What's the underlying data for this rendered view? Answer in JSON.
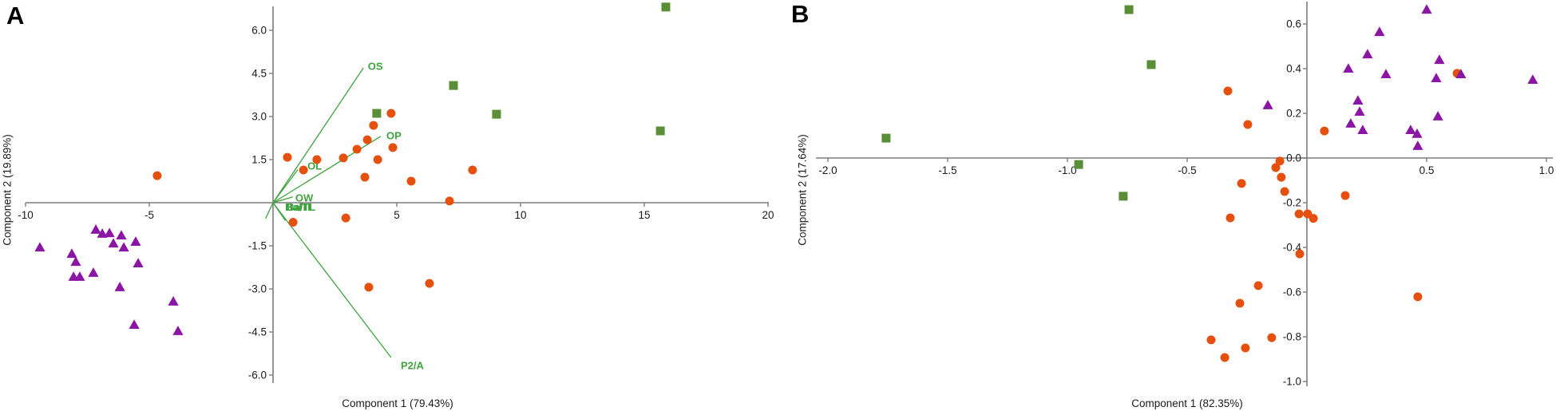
{
  "figure": {
    "background": "#ffffff",
    "description_colors": {
      "circle_series": "#e5500f",
      "triangle_series": "#8b16a3",
      "square_series": "#5a8f37",
      "vector_green": "#3fa33f",
      "axis_gray": "#7d7d7d",
      "text_dark": "#1a1a1a"
    }
  },
  "chart_data": [
    {
      "type": "scatter",
      "panel_label": "A",
      "xlabel": "Component 1 (79.43%)",
      "ylabel": "Component 2 (19.89%)",
      "xlim": [
        -10.7,
        20.6
      ],
      "ylim": [
        -6.5,
        6.9
      ],
      "grid": false,
      "legend": null,
      "x_ticks": {
        "values": [
          -10,
          -5,
          5,
          10,
          15,
          20
        ],
        "labels": [
          "-10",
          "-5",
          "5",
          "10",
          "15",
          "20"
        ]
      },
      "y_ticks": {
        "values": [
          6,
          4.5,
          3,
          1.5,
          -1.5,
          -3,
          -4.5,
          -6
        ],
        "labels": [
          "6.0",
          "4.5",
          "3.0",
          "1.5",
          "-1.5",
          "-3.0",
          "-4.5",
          "-6.0"
        ]
      },
      "series": [
        {
          "name": "group-circles",
          "marker": "circle",
          "color": "#e5500f",
          "points": [
            [
              -4.68,
              0.94
            ],
            [
              0.58,
              1.58
            ],
            [
              1.23,
              1.14
            ],
            [
              1.77,
              1.5
            ],
            [
              2.84,
              1.56
            ],
            [
              3.39,
              1.86
            ],
            [
              3.81,
              2.19
            ],
            [
              4.06,
              2.69
            ],
            [
              4.77,
              3.11
            ],
            [
              4.23,
              1.5
            ],
            [
              4.84,
              1.92
            ],
            [
              3.71,
              0.89
            ],
            [
              5.58,
              0.75
            ],
            [
              8.06,
              1.14
            ],
            [
              7.13,
              0.06
            ],
            [
              0.81,
              -0.68
            ],
            [
              2.94,
              -0.53
            ],
            [
              3.87,
              -2.94
            ],
            [
              6.32,
              -2.81
            ]
          ]
        },
        {
          "name": "group-triangles",
          "marker": "triangle",
          "color": "#8b16a3",
          "points": [
            [
              -9.42,
              -1.56
            ],
            [
              -8.13,
              -1.78
            ],
            [
              -7.97,
              -2.06
            ],
            [
              -8.06,
              -2.58
            ],
            [
              -7.81,
              -2.58
            ],
            [
              -7.26,
              -2.44
            ],
            [
              -7.16,
              -0.94
            ],
            [
              -6.9,
              -1.08
            ],
            [
              -6.61,
              -1.06
            ],
            [
              -6.45,
              -1.42
            ],
            [
              -6.13,
              -1.14
            ],
            [
              -6.03,
              -1.56
            ],
            [
              -5.55,
              -1.36
            ],
            [
              -5.45,
              -2.11
            ],
            [
              -6.19,
              -2.94
            ],
            [
              -4.03,
              -3.44
            ],
            [
              -5.61,
              -4.25
            ],
            [
              -3.84,
              -4.47
            ]
          ]
        },
        {
          "name": "group-squares",
          "marker": "square",
          "color": "#5a8f37",
          "points": [
            [
              4.19,
              3.11
            ],
            [
              7.29,
              4.08
            ],
            [
              9.03,
              3.08
            ],
            [
              15.87,
              6.81
            ],
            [
              15.65,
              2.5
            ]
          ]
        }
      ],
      "vectors": {
        "color": "#3fa33f",
        "origin": [
          0,
          0
        ],
        "items": [
          {
            "label": "OS",
            "tip": [
              3.65,
              4.69
            ],
            "label_pos": [
              3.83,
              4.75
            ]
          },
          {
            "label": "OP",
            "tip": [
              4.35,
              2.31
            ],
            "label_pos": [
              4.58,
              2.33
            ]
          },
          {
            "label": "OL",
            "tip": [
              1.0,
              1.15
            ],
            "label_pos": [
              1.39,
              1.28
            ]
          },
          {
            "label": "OW",
            "tip": [
              0.8,
              0.2
            ],
            "label_pos": [
              0.9,
              0.17
            ]
          },
          {
            "label": "Ba/TL",
            "tip": [
              0.5,
              -0.62
            ],
            "label_pos": [
              0.52,
              -0.15
            ],
            "dense": true
          },
          {
            "label": "",
            "tip": [
              -0.3,
              -0.55
            ],
            "label_pos": [
              -0.3,
              -0.55
            ]
          },
          {
            "label": "P2/A",
            "tip": [
              4.77,
              -5.39
            ],
            "label_pos": [
              5.16,
              -5.67
            ]
          }
        ]
      }
    },
    {
      "type": "scatter",
      "panel_label": "B",
      "xlabel": "Component 1 (82.35%)",
      "ylabel": "Component 2 (17.64%)",
      "xlim": [
        -2.05,
        1.03
      ],
      "ylim": [
        -1.02,
        0.7
      ],
      "grid": false,
      "legend": null,
      "x_ticks": {
        "values": [
          -2,
          -1.5,
          -1,
          -0.5,
          0.5,
          1
        ],
        "labels": [
          "-2.0",
          "-1.5",
          "-1.0",
          "-0.5",
          "0.5",
          "1.0"
        ]
      },
      "y_ticks": {
        "values": [
          0.6,
          0.4,
          0.2,
          0,
          -0.2,
          -0.4,
          -0.6,
          -0.8,
          -1
        ],
        "labels": [
          "0.6",
          "0.4",
          "0.2",
          "0.0",
          "-0.2",
          "-0.4",
          "-0.6",
          "-0.8",
          "-1.0"
        ]
      },
      "series": [
        {
          "name": "group-circles",
          "marker": "circle",
          "color": "#e5500f",
          "points": [
            [
              -0.33,
              0.3
            ],
            [
              -0.247,
              0.15
            ],
            [
              0.073,
              0.121
            ],
            [
              0.627,
              0.379
            ],
            [
              -0.113,
              -0.014
            ],
            [
              -0.13,
              -0.043
            ],
            [
              -0.107,
              -0.086
            ],
            [
              -0.093,
              -0.15
            ],
            [
              -0.273,
              -0.114
            ],
            [
              0.16,
              -0.168
            ],
            [
              -0.033,
              -0.25
            ],
            [
              0.003,
              -0.25
            ],
            [
              0.027,
              -0.27
            ],
            [
              -0.32,
              -0.268
            ],
            [
              -0.03,
              -0.429
            ],
            [
              -0.203,
              -0.571
            ],
            [
              -0.28,
              -0.65
            ],
            [
              0.463,
              -0.621
            ],
            [
              -0.147,
              -0.804
            ],
            [
              -0.4,
              -0.814
            ],
            [
              -0.257,
              -0.85
            ],
            [
              -0.343,
              -0.893
            ]
          ]
        },
        {
          "name": "group-triangles",
          "marker": "triangle",
          "color": "#8b16a3",
          "points": [
            [
              0.5,
              0.664
            ],
            [
              0.303,
              0.564
            ],
            [
              0.253,
              0.464
            ],
            [
              0.173,
              0.4
            ],
            [
              0.33,
              0.375
            ],
            [
              0.553,
              0.439
            ],
            [
              0.643,
              0.375
            ],
            [
              0.54,
              0.357
            ],
            [
              0.943,
              0.35
            ],
            [
              0.213,
              0.257
            ],
            [
              0.22,
              0.207
            ],
            [
              0.183,
              0.154
            ],
            [
              0.233,
              0.125
            ],
            [
              0.433,
              0.125
            ],
            [
              0.46,
              0.108
            ],
            [
              0.463,
              0.054
            ],
            [
              -0.163,
              0.236
            ],
            [
              0.547,
              0.186
            ]
          ]
        },
        {
          "name": "group-squares",
          "marker": "square",
          "color": "#5a8f37",
          "points": [
            [
              -0.743,
              0.664
            ],
            [
              -0.65,
              0.418
            ],
            [
              -1.757,
              0.089
            ],
            [
              -0.953,
              -0.029
            ],
            [
              -0.767,
              -0.171
            ]
          ]
        }
      ],
      "vectors": null
    }
  ]
}
